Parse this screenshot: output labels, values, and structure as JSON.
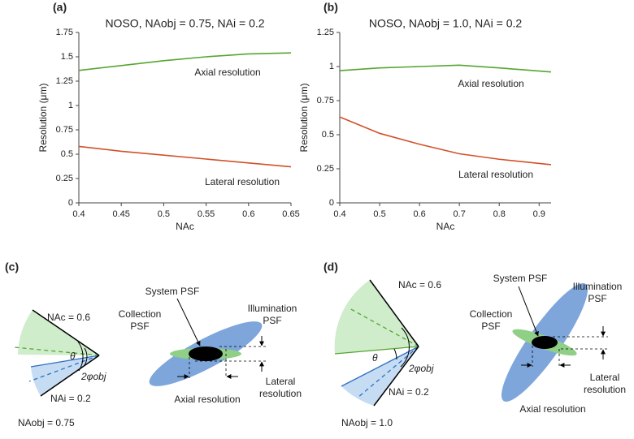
{
  "chart_data": [
    {
      "type": "line",
      "panel": "(a)",
      "title": "NOSO, NAobj = 0.75, NAi = 0.2",
      "x_label": "NAc",
      "y_label": "Resolution (μm)",
      "x": [
        0.4,
        0.45,
        0.5,
        0.55,
        0.6,
        0.65
      ],
      "series": [
        {
          "name": "Axial resolution",
          "color": "#55a630",
          "values": [
            1.36,
            1.41,
            1.46,
            1.5,
            1.53,
            1.54
          ]
        },
        {
          "name": "Lateral resolution",
          "color": "#d0512a",
          "values": [
            0.58,
            0.53,
            0.49,
            0.45,
            0.41,
            0.37
          ]
        }
      ],
      "xlim": [
        0.4,
        0.65
      ],
      "xticks": [
        0.4,
        0.45,
        0.5,
        0.55,
        0.6,
        0.65
      ],
      "ylim": [
        0,
        1.75
      ],
      "yticks": [
        0,
        0.25,
        0.5,
        0.75,
        1,
        1.25,
        1.5,
        1.75
      ]
    },
    {
      "type": "line",
      "panel": "(b)",
      "title": "NOSO, NAobj = 1.0, NAi = 0.2",
      "x_label": "NAc",
      "y_label": "Resolution (μm)",
      "x": [
        0.4,
        0.5,
        0.6,
        0.7,
        0.8,
        0.93
      ],
      "series": [
        {
          "name": "Axial resolution",
          "color": "#55a630",
          "values": [
            0.97,
            0.99,
            1.0,
            1.01,
            0.99,
            0.96
          ]
        },
        {
          "name": "Lateral resolution",
          "color": "#d0512a",
          "values": [
            0.63,
            0.51,
            0.43,
            0.36,
            0.32,
            0.28
          ]
        }
      ],
      "xlim": [
        0.4,
        0.93
      ],
      "xticks": [
        0.4,
        0.5,
        0.6,
        0.7,
        0.8,
        0.9
      ],
      "ylim": [
        0,
        1.25
      ],
      "yticks": [
        0,
        0.25,
        0.5,
        0.75,
        1,
        1.25
      ]
    }
  ],
  "diagrams": [
    {
      "panel": "(c)",
      "nac": "NAc = 0.6",
      "theta": "θ",
      "phi": "2φobj",
      "nai": "NAi = 0.2",
      "naobj": "NAobj = 0.75",
      "system_psf": "System PSF",
      "illumination_psf": [
        "Illumination",
        "PSF"
      ],
      "collection_psf": [
        "Collection",
        "PSF"
      ],
      "lateral_resolution": [
        "Lateral",
        "resolution"
      ],
      "axial_resolution": "Axial resolution"
    },
    {
      "panel": "(d)",
      "nac": "NAc = 0.6",
      "theta": "θ",
      "phi": "2φobj",
      "nai": "NAi = 0.2",
      "naobj": "NAobj = 1.0",
      "system_psf": "System PSF",
      "illumination_psf": [
        "Illumination",
        "PSF"
      ],
      "collection_psf": [
        "Collection",
        "PSF"
      ],
      "lateral_resolution": [
        "Lateral",
        "resolution"
      ],
      "axial_resolution": "Axial resolution"
    }
  ]
}
